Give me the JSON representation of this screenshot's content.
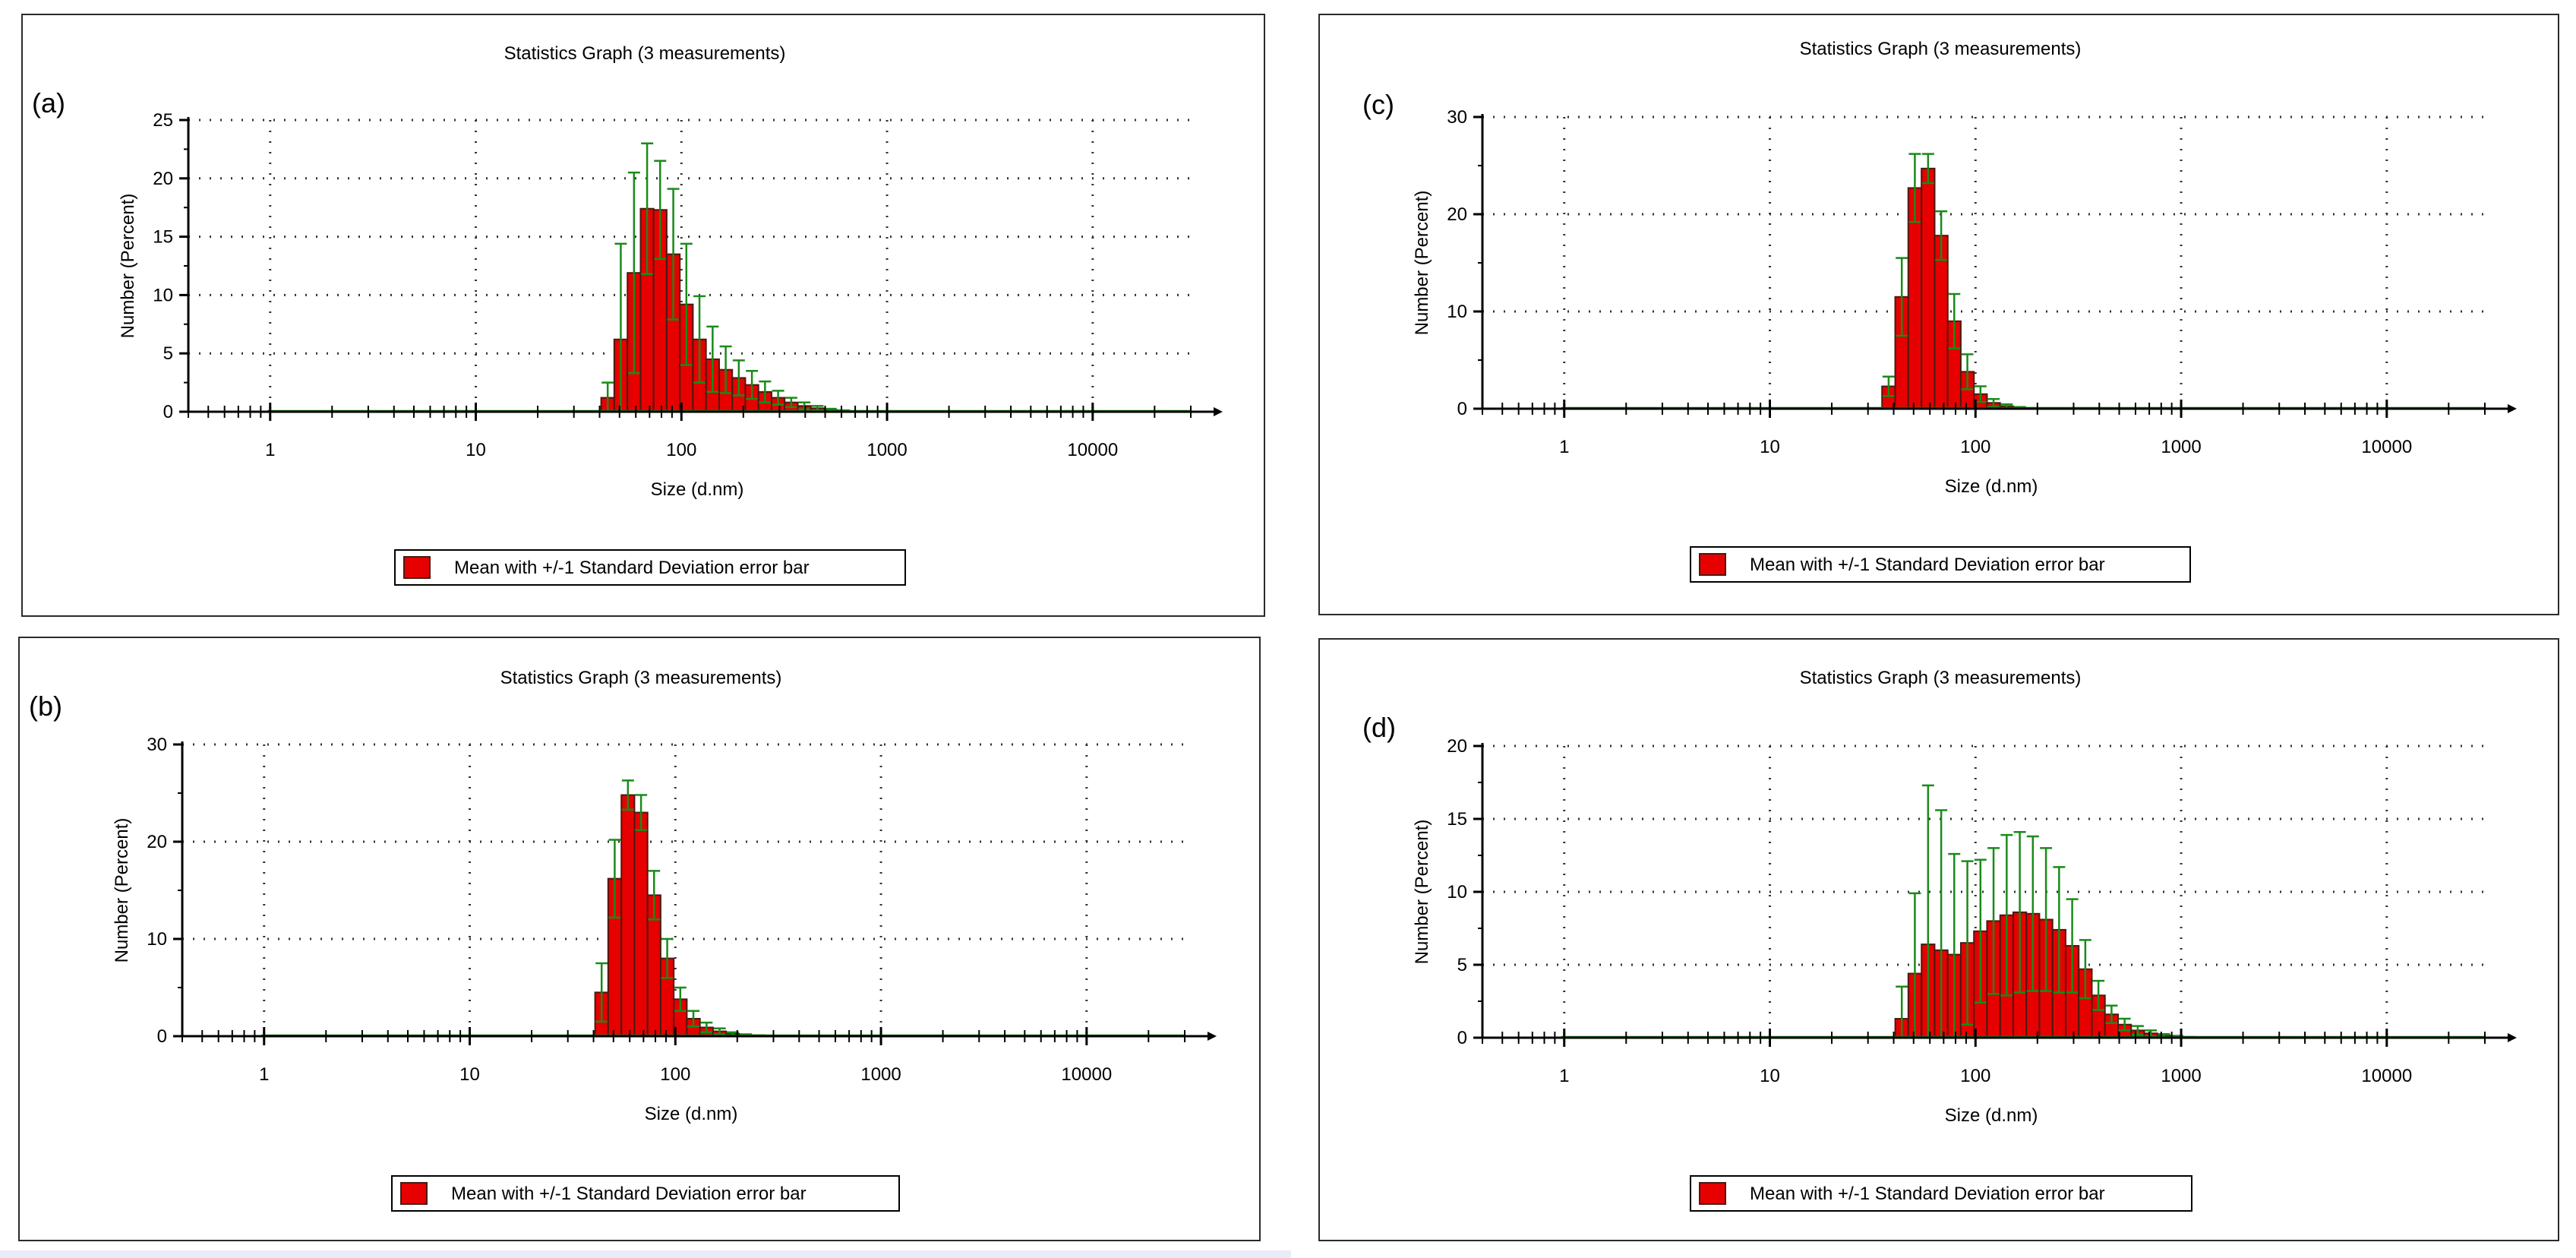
{
  "chart_data": [
    {
      "panel_label": "(a)",
      "type": "bar",
      "title": "Statistics Graph (3 measurements)",
      "xlabel": "Size (d.nm)",
      "ylabel": "Number (Percent)",
      "xscale": "log",
      "xlim": [
        0.4,
        30000
      ],
      "ylim": [
        0,
        25
      ],
      "yticks": [
        0,
        5,
        10,
        15,
        20,
        25
      ],
      "xticks": [
        1,
        10,
        100,
        1000,
        10000
      ],
      "xtick_labels": [
        "1",
        "10",
        "100",
        "1000",
        "10000"
      ],
      "legend": "Mean with +/-1 Standard Deviation error bar",
      "legend_position": "bottom-center",
      "bins_nm": [
        43.8,
        50.7,
        58.8,
        68.1,
        78.8,
        91.3,
        105.7,
        122.4,
        141.8,
        164.2,
        190.1,
        220.2,
        255.0,
        295.3,
        342.0,
        396.1,
        458.7,
        531.2,
        615.1,
        712.4
      ],
      "values": [
        1.2,
        6.2,
        11.9,
        17.4,
        17.3,
        13.5,
        9.2,
        6.2,
        4.5,
        3.6,
        2.9,
        2.3,
        1.7,
        1.2,
        0.8,
        0.5,
        0.3,
        0.15,
        0.07,
        0.03
      ],
      "errors": [
        1.3,
        8.2,
        8.6,
        5.6,
        4.2,
        5.6,
        5.2,
        3.7,
        2.8,
        2.0,
        1.5,
        1.2,
        0.9,
        0.6,
        0.4,
        0.3,
        0.2,
        0.1,
        0.05,
        0.02
      ]
    },
    {
      "panel_label": "(b)",
      "type": "bar",
      "title": "Statistics Graph (3 measurements)",
      "xlabel": "Size (d.nm)",
      "ylabel": "Number (Percent)",
      "xscale": "log",
      "xlim": [
        0.4,
        30000
      ],
      "ylim": [
        0,
        30
      ],
      "yticks": [
        0,
        10,
        20,
        30
      ],
      "xticks": [
        1,
        10,
        100,
        1000,
        10000
      ],
      "xtick_labels": [
        "1",
        "10",
        "100",
        "1000",
        "10000"
      ],
      "legend": "Mean with +/-1 Standard Deviation error bar",
      "legend_position": "bottom-center",
      "bins_nm": [
        43.8,
        50.7,
        58.8,
        68.1,
        78.8,
        91.3,
        105.7,
        122.4,
        141.8,
        164.2,
        190.1,
        220.2,
        255.0,
        295.3
      ],
      "values": [
        4.5,
        16.2,
        24.8,
        23.0,
        14.5,
        8.0,
        3.8,
        1.8,
        0.9,
        0.5,
        0.25,
        0.12,
        0.06,
        0.03
      ],
      "errors": [
        3.0,
        4.0,
        1.5,
        1.8,
        2.5,
        2.0,
        1.2,
        0.8,
        0.5,
        0.3,
        0.15,
        0.08,
        0.04,
        0.02
      ]
    },
    {
      "panel_label": "(c)",
      "type": "bar",
      "title": "Statistics Graph (3 measurements)",
      "xlabel": "Size (d.nm)",
      "ylabel": "Number (Percent)",
      "xscale": "log",
      "xlim": [
        0.4,
        30000
      ],
      "ylim": [
        0,
        30
      ],
      "yticks": [
        0,
        10,
        20,
        30
      ],
      "xticks": [
        1,
        10,
        100,
        1000,
        10000
      ],
      "xtick_labels": [
        "1",
        "10",
        "100",
        "1000",
        "10000"
      ],
      "legend": "Mean with +/-1 Standard Deviation error bar",
      "legend_position": "bottom-center",
      "bins_nm": [
        37.8,
        43.8,
        50.7,
        58.8,
        68.1,
        78.8,
        91.3,
        105.7,
        122.4,
        141.8,
        164.2,
        190.1
      ],
      "values": [
        2.3,
        11.5,
        22.7,
        24.7,
        17.8,
        9.0,
        3.8,
        1.5,
        0.6,
        0.25,
        0.1,
        0.04
      ],
      "errors": [
        1.0,
        4.0,
        3.5,
        1.5,
        2.5,
        2.8,
        1.8,
        0.8,
        0.4,
        0.2,
        0.08,
        0.03
      ]
    },
    {
      "panel_label": "(d)",
      "type": "bar",
      "title": "Statistics Graph (3 measurements)",
      "xlabel": "Size (d.nm)",
      "ylabel": "Number (Percent)",
      "xscale": "log",
      "xlim": [
        0.4,
        30000
      ],
      "ylim": [
        0,
        20
      ],
      "yticks": [
        0,
        5,
        10,
        15,
        20
      ],
      "xticks": [
        1,
        10,
        100,
        1000,
        10000
      ],
      "xtick_labels": [
        "1",
        "10",
        "100",
        "1000",
        "10000"
      ],
      "legend": "Mean with +/-1 Standard Deviation error bar",
      "legend_position": "bottom-center",
      "bins_nm": [
        43.8,
        50.7,
        58.8,
        68.1,
        78.8,
        91.3,
        105.7,
        122.4,
        141.8,
        164.2,
        190.1,
        220.2,
        255.0,
        295.3,
        342.0,
        396.1,
        458.7,
        531.2,
        615.1,
        712.4,
        825.0,
        955.4,
        1106.0
      ],
      "values": [
        1.3,
        4.4,
        6.4,
        6.0,
        5.7,
        6.5,
        7.3,
        8.0,
        8.4,
        8.6,
        8.5,
        8.1,
        7.4,
        6.3,
        4.7,
        2.9,
        1.6,
        0.9,
        0.5,
        0.3,
        0.15,
        0.08,
        0.03
      ],
      "errors": [
        2.2,
        5.5,
        10.9,
        9.6,
        6.9,
        5.6,
        4.9,
        5.0,
        5.5,
        5.5,
        5.3,
        4.9,
        4.3,
        3.2,
        2.0,
        1.0,
        0.6,
        0.4,
        0.3,
        0.2,
        0.1,
        0.05,
        0.02
      ]
    }
  ]
}
